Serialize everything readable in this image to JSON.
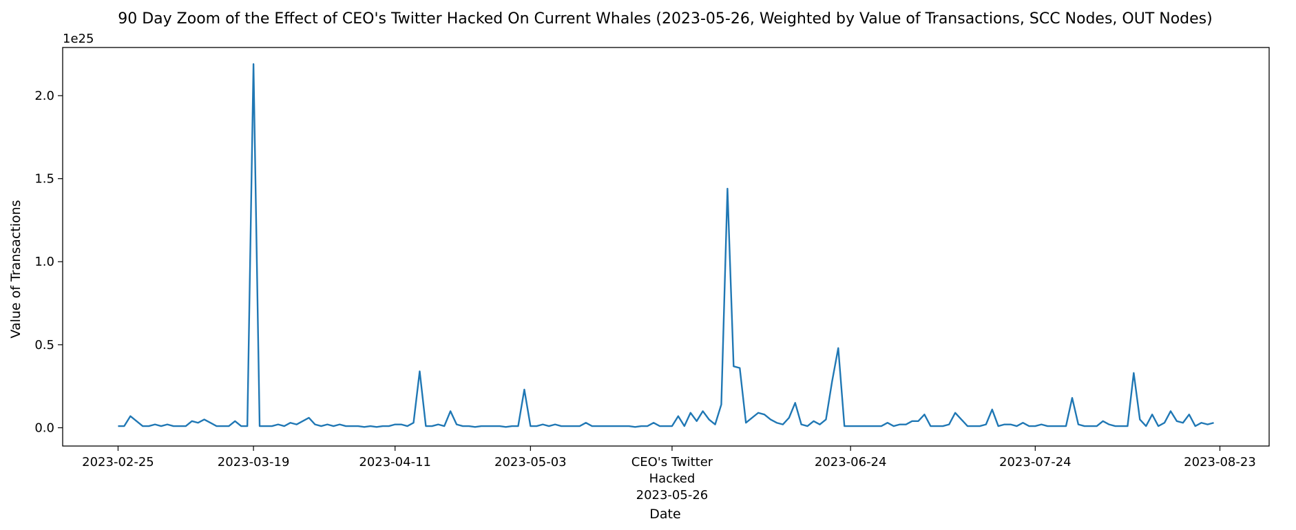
{
  "chart_data": {
    "type": "line",
    "title": "90 Day Zoom of the Effect of CEO's Twitter Hacked On Current Whales (2023-05-26, Weighted by Value of Transactions, SCC Nodes, OUT Nodes)",
    "xlabel": "Date",
    "ylabel": "Value of Transactions",
    "y_scale_label": "1e25",
    "y_multiplier": 1e+25,
    "ylim": [
      -0.11,
      2.29
    ],
    "xlim": [
      "2023-02-16",
      "2023-08-31"
    ],
    "y_ticks": [
      {
        "value": 0.0,
        "label": "0.0"
      },
      {
        "value": 0.5,
        "label": "0.5"
      },
      {
        "value": 1.0,
        "label": "1.0"
      },
      {
        "value": 1.5,
        "label": "1.5"
      },
      {
        "value": 2.0,
        "label": "2.0"
      }
    ],
    "x_ticks": [
      {
        "date": "2023-02-25",
        "lines": [
          "2023-02-25"
        ]
      },
      {
        "date": "2023-03-19",
        "lines": [
          "2023-03-19"
        ]
      },
      {
        "date": "2023-04-11",
        "lines": [
          "2023-04-11"
        ]
      },
      {
        "date": "2023-05-03",
        "lines": [
          "2023-05-03"
        ]
      },
      {
        "date": "2023-05-26",
        "lines": [
          "CEO's Twitter",
          "Hacked",
          "2023-05-26"
        ]
      },
      {
        "date": "2023-06-24",
        "lines": [
          "2023-06-24"
        ]
      },
      {
        "date": "2023-07-24",
        "lines": [
          "2023-07-24"
        ]
      },
      {
        "date": "2023-08-23",
        "lines": [
          "2023-08-23"
        ]
      }
    ],
    "grid": false,
    "color": "#1f77b4",
    "series": [
      {
        "start_date": "2023-02-25",
        "step_days": 1,
        "values": [
          0.01,
          0.01,
          0.07,
          0.04,
          0.01,
          0.01,
          0.02,
          0.01,
          0.02,
          0.01,
          0.01,
          0.01,
          0.04,
          0.03,
          0.05,
          0.03,
          0.01,
          0.01,
          0.01,
          0.04,
          0.01,
          0.01,
          2.19,
          0.01,
          0.01,
          0.01,
          0.02,
          0.01,
          0.03,
          0.02,
          0.04,
          0.06,
          0.02,
          0.01,
          0.02,
          0.01,
          0.02,
          0.01,
          0.01,
          0.01,
          0.005,
          0.01,
          0.005,
          0.01,
          0.01,
          0.02,
          0.02,
          0.01,
          0.03,
          0.34,
          0.01,
          0.01,
          0.02,
          0.01,
          0.1,
          0.02,
          0.01,
          0.01,
          0.005,
          0.01,
          0.01,
          0.01,
          0.01,
          0.005,
          0.01,
          0.01,
          0.23,
          0.01,
          0.01,
          0.02,
          0.01,
          0.02,
          0.01,
          0.01,
          0.01,
          0.01,
          0.03,
          0.01,
          0.01,
          0.01,
          0.01,
          0.01,
          0.01,
          0.01,
          0.005,
          0.01,
          0.01,
          0.03,
          0.01,
          0.01,
          0.01,
          0.07,
          0.01,
          0.09,
          0.04,
          0.1,
          0.05,
          0.02,
          0.14,
          1.44,
          0.37,
          0.36,
          0.03,
          0.06,
          0.09,
          0.08,
          0.05,
          0.03,
          0.02,
          0.06,
          0.15,
          0.02,
          0.01,
          0.04,
          0.02,
          0.05,
          0.28,
          0.48,
          0.01,
          0.01,
          0.01,
          0.01,
          0.01,
          0.01,
          0.01,
          0.03,
          0.01,
          0.02,
          0.02,
          0.04,
          0.04,
          0.08,
          0.01,
          0.01,
          0.01,
          0.02,
          0.09,
          0.05,
          0.01,
          0.01,
          0.01,
          0.02,
          0.11,
          0.01,
          0.02,
          0.02,
          0.01,
          0.03,
          0.01,
          0.01,
          0.02,
          0.01,
          0.01,
          0.01,
          0.01,
          0.18,
          0.02,
          0.01,
          0.01,
          0.01,
          0.04,
          0.02,
          0.01,
          0.01,
          0.01,
          0.33,
          0.05,
          0.01,
          0.08,
          0.01,
          0.03,
          0.1,
          0.04,
          0.03,
          0.08,
          0.01,
          0.03,
          0.02,
          0.03
        ]
      }
    ]
  }
}
